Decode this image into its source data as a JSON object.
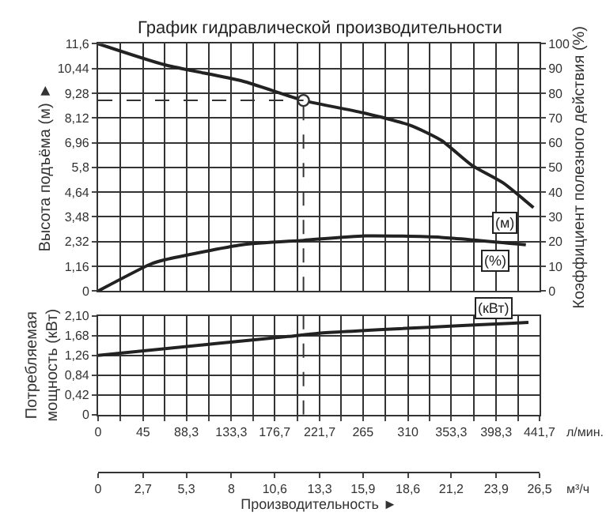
{
  "chart_data": [
    {
      "type": "line",
      "title": "График гидравлической производительности",
      "ylabel": "Высота подъёма (м) ►",
      "y2label": "Коэффициент полезного действия (%)",
      "xlim": [
        0,
        441.7
      ],
      "xticks": [
        {
          "value": 0,
          "label": null
        },
        {
          "value": 22.1,
          "label": null
        },
        {
          "value": 45,
          "label": null
        },
        {
          "value": 66.7,
          "label": null
        },
        {
          "value": 88.3,
          "label": null
        },
        {
          "value": 110.8,
          "label": null
        },
        {
          "value": 133.3,
          "label": null
        },
        {
          "value": 155,
          "label": null
        },
        {
          "value": 176.7,
          "label": null
        },
        {
          "value": 199.2,
          "label": null
        },
        {
          "value": 221.7,
          "label": null
        },
        {
          "value": 243.4,
          "label": null
        },
        {
          "value": 265,
          "label": null
        },
        {
          "value": 287.5,
          "label": null
        },
        {
          "value": 310,
          "label": null
        },
        {
          "value": 331.7,
          "label": null
        },
        {
          "value": 353.3,
          "label": null
        },
        {
          "value": 375.8,
          "label": null
        },
        {
          "value": 398.3,
          "label": null
        },
        {
          "value": 420,
          "label": null
        },
        {
          "value": 441.7,
          "label": null
        }
      ],
      "ylim": [
        0,
        11.6
      ],
      "yticks": [
        0,
        {
          "value": 1.16,
          "label": "1,16"
        },
        {
          "value": 2.32,
          "label": "2,32"
        },
        {
          "value": 3.48,
          "label": "3,48"
        },
        {
          "value": 4.64,
          "label": "4,64"
        },
        {
          "value": 5.8,
          "label": "5,8"
        },
        {
          "value": 6.96,
          "label": "6,96"
        },
        {
          "value": 8.12,
          "label": "8,12"
        },
        {
          "value": 9.28,
          "label": "9,28"
        },
        {
          "value": 10.44,
          "label": "10,44"
        },
        {
          "value": 11.6,
          "label": "11,6"
        }
      ],
      "y2lim": [
        0,
        100
      ],
      "y2ticks": [
        0,
        10,
        20,
        30,
        40,
        50,
        60,
        70,
        80,
        90,
        100
      ],
      "tick_labels": "y",
      "grid": true,
      "series": [
        {
          "name": "(м)",
          "color": "#222222",
          "x": [
            0,
            67.5,
            144.2,
            205.5,
            266.9,
            312.9,
            343.5,
            374.2,
            404.9,
            435.6
          ],
          "values": [
            11.6,
            10.6,
            9.85,
            8.94,
            8.34,
            7.76,
            7.06,
            5.89,
            5.08,
            3.91
          ]
        },
        {
          "name": "(%)",
          "color": "#222222",
          "axis": "y2",
          "x": [
            0,
            52.1,
            67.5,
            144.2,
            205.5,
            267,
            343.5,
            428
          ],
          "values": [
            0,
            10.8,
            12.7,
            18.7,
            20.5,
            22.3,
            21.7,
            18.7
          ]
        },
        {
          "type": "scatter",
          "color": "#333333",
          "marker": "circle",
          "x": [
            205.5
          ],
          "values": [
            8.94
          ]
        }
      ],
      "ref_lines": [
        {
          "axis": "x",
          "value": 205.5,
          "line_style": "dashed",
          "color": "#333333"
        },
        {
          "axis": "y",
          "value": 8.94,
          "line_style": "dashed",
          "color": "#333333"
        }
      ]
    },
    {
      "type": "line",
      "ylabel": "Потребляемая\nмощность (кВт)",
      "xlabel": "Производительность ►",
      "xlim": [
        0,
        441.7
      ],
      "xticks": [
        0,
        {
          "value": 22.1,
          "label": null
        },
        45,
        {
          "value": 66.7,
          "label": null
        },
        {
          "value": 88.3,
          "label": "88,3"
        },
        {
          "value": 110.8,
          "label": null
        },
        {
          "value": 133.3,
          "label": "133,3"
        },
        {
          "value": 155,
          "label": null
        },
        {
          "value": 176.7,
          "label": "176,7"
        },
        {
          "value": 199.2,
          "label": null
        },
        {
          "value": 221.7,
          "label": "221,7"
        },
        {
          "value": 243.4,
          "label": null
        },
        265,
        {
          "value": 287.5,
          "label": null
        },
        310,
        {
          "value": 331.7,
          "label": null
        },
        {
          "value": 353.3,
          "label": "353,3"
        },
        {
          "value": 375.8,
          "label": null
        },
        {
          "value": 398.3,
          "label": "398,3"
        },
        {
          "value": 420,
          "label": null
        },
        {
          "value": 441.7,
          "label": "441,7"
        }
      ],
      "annotations": [
        "л/мин.",
        "м³/ч"
      ],
      "x2lim": [
        0,
        26.5
      ],
      "x2ticks": [
        0,
        {
          "value": 2.7,
          "label": "2,7"
        },
        {
          "value": 5.3,
          "label": "5,3"
        },
        8,
        {
          "value": 10.6,
          "label": "10,6"
        },
        {
          "value": 13.3,
          "label": "13,3"
        },
        {
          "value": 15.9,
          "label": "15,9"
        },
        {
          "value": 18.6,
          "label": "18,6"
        },
        {
          "value": 21.2,
          "label": "21,2"
        },
        {
          "value": 23.9,
          "label": "23,9"
        },
        {
          "value": 26.5,
          "label": "26,5"
        }
      ],
      "ylim": [
        0,
        2.1
      ],
      "yticks": [
        0,
        {
          "value": 0.42,
          "label": "0,42"
        },
        {
          "value": 0.84,
          "label": "0,84"
        },
        {
          "value": 1.26,
          "label": "1,26"
        },
        {
          "value": 1.68,
          "label": "1,68"
        },
        {
          "value": 2.1,
          "label": "2,10"
        }
      ],
      "grid": true,
      "series": [
        {
          "name": "(кВт)",
          "color": "#222222",
          "x": [
            0,
            118,
            190.2,
            220.8,
            430.6
          ],
          "values": [
            1.26,
            1.51,
            1.66,
            1.73,
            1.96
          ]
        }
      ],
      "ref_lines": [
        {
          "axis": "x",
          "value": 205.5,
          "line_style": "dashed",
          "color": "#333333"
        }
      ]
    }
  ]
}
